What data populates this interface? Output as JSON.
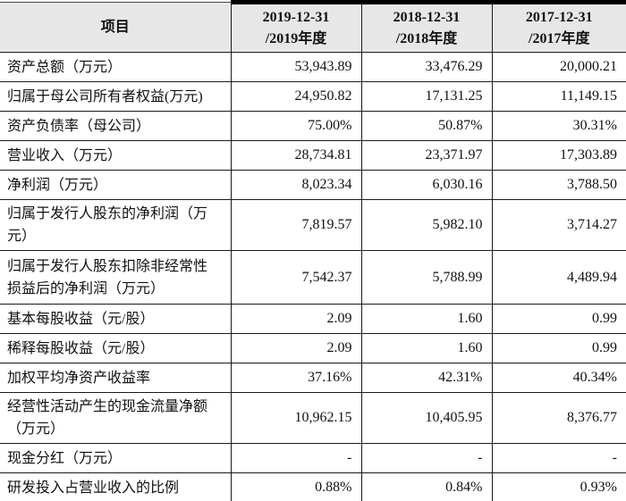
{
  "table": {
    "header": {
      "item_label": "项目",
      "columns": [
        {
          "line1": "2019-12-31",
          "line2": "/2019年度"
        },
        {
          "line1": "2018-12-31",
          "line2": "/2018年度"
        },
        {
          "line1": "2017-12-31",
          "line2": "/2017年度"
        }
      ]
    },
    "rows": [
      {
        "label": "资产总额（万元）",
        "values": [
          "53,943.89",
          "33,476.29",
          "20,000.21"
        ]
      },
      {
        "label": "归属于母公司所有者权益(万元)",
        "values": [
          "24,950.82",
          "17,131.25",
          "11,149.15"
        ]
      },
      {
        "label": "资产负债率（母公司）",
        "values": [
          "75.00%",
          "50.87%",
          "30.31%"
        ]
      },
      {
        "label": "营业收入（万元）",
        "values": [
          "28,734.81",
          "23,371.97",
          "17,303.89"
        ]
      },
      {
        "label": "净利润（万元）",
        "values": [
          "8,023.34",
          "6,030.16",
          "3,788.50"
        ]
      },
      {
        "label": "归属于发行人股东的净利润（万元）",
        "values": [
          "7,819.57",
          "5,982.10",
          "3,714.27"
        ]
      },
      {
        "label": "归属于发行人股东扣除非经常性损益后的净利润（万元）",
        "values": [
          "7,542.37",
          "5,788.99",
          "4,489.94"
        ]
      },
      {
        "label": "基本每股收益（元/股）",
        "values": [
          "2.09",
          "1.60",
          "0.99"
        ]
      },
      {
        "label": "稀释每股收益（元/股）",
        "values": [
          "2.09",
          "1.60",
          "0.99"
        ]
      },
      {
        "label": "加权平均净资产收益率",
        "values": [
          "37.16%",
          "42.31%",
          "40.34%"
        ]
      },
      {
        "label": "经营性活动产生的现金流量净额（万元）",
        "values": [
          "10,962.15",
          "10,405.95",
          "8,376.77"
        ]
      },
      {
        "label": "现金分红（万元）",
        "values": [
          "-",
          "-",
          "-"
        ]
      },
      {
        "label": "研发投入占营业收入的比例",
        "values": [
          "0.88%",
          "0.84%",
          "0.93%"
        ]
      }
    ]
  },
  "colors": {
    "header_bg": "#e7e7e7",
    "grid_border": "#1a1a1a",
    "thick_border": "#000000",
    "text": "#111111"
  }
}
